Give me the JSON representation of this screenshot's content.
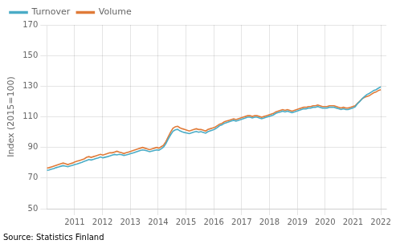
{
  "chart_data": {
    "type": "line",
    "y_label": "Index (2015=100)",
    "annotations": [
      "Source: Statistics Finland"
    ],
    "xlim": [
      2010.0,
      2022.2
    ],
    "xticks": [
      2011,
      2012,
      2013,
      2014,
      2015,
      2016,
      2017,
      2018,
      2019,
      2020,
      2021,
      2022
    ],
    "ylim": [
      50,
      170
    ],
    "yticks": [
      50,
      70,
      90,
      110,
      130,
      150,
      170
    ],
    "grid": true,
    "legend": "upper left",
    "x": [
      2010.0,
      2010.0839,
      2010.1678,
      2010.2517,
      2010.3357,
      2010.4196,
      2010.5035,
      2010.5874,
      2010.6713,
      2010.7552,
      2010.8392,
      2010.9231,
      2011.007,
      2011.0909,
      2011.1748,
      2011.2587,
      2011.3427,
      2011.4266,
      2011.5105,
      2011.5944,
      2011.6783,
      2011.7622,
      2011.8462,
      2011.9301,
      2012.014,
      2012.0979,
      2012.1818,
      2012.2657,
      2012.3497,
      2012.4336,
      2012.5175,
      2012.6014,
      2012.6853,
      2012.7692,
      2012.8531,
      2012.9371,
      2013.021,
      2013.1049,
      2013.1888,
      2013.2727,
      2013.3566,
      2013.4406,
      2013.5245,
      2013.6084,
      2013.6923,
      2013.7762,
      2013.8601,
      2013.9441,
      2014.028,
      2014.1119,
      2014.1958,
      2014.2797,
      2014.3636,
      2014.4476,
      2014.5315,
      2014.6154,
      2014.6993,
      2014.7832,
      2014.8671,
      2014.951,
      2015.035,
      2015.1189,
      2015.2028,
      2015.2867,
      2015.3706,
      2015.4545,
      2015.5385,
      2015.6224,
      2015.7063,
      2015.7902,
      2015.8741,
      2015.958,
      2016.042,
      2016.1259,
      2016.2098,
      2016.2937,
      2016.3776,
      2016.4615,
      2016.5455,
      2016.6294,
      2016.7133,
      2016.7972,
      2016.8811,
      2016.965,
      2017.049,
      2017.1329,
      2017.2168,
      2017.3007,
      2017.3846,
      2017.4685,
      2017.5524,
      2017.6364,
      2017.7203,
      2017.8042,
      2017.8881,
      2017.972,
      2018.0559,
      2018.1399,
      2018.2238,
      2018.3077,
      2018.3916,
      2018.4755,
      2018.5594,
      2018.6434,
      2018.7273,
      2018.8112,
      2018.8951,
      2018.979,
      2019.0629,
      2019.1469,
      2019.2308,
      2019.3147,
      2019.3986,
      2019.4825,
      2019.5664,
      2019.6503,
      2019.7343,
      2019.8182,
      2019.9021,
      2019.986,
      2020.0699,
      2020.1538,
      2020.2378,
      2020.3217,
      2020.4056,
      2020.4895,
      2020.5734,
      2020.6573,
      2020.7413,
      2020.8252,
      2020.9091,
      2020.993,
      2021.0769,
      2021.1608,
      2021.2448,
      2021.3287,
      2021.4126,
      2021.4965,
      2021.5804,
      2021.6643,
      2021.7483,
      2021.8322,
      2021.9161,
      2022.0
    ],
    "series": [
      {
        "name": "Turnover",
        "color": "#4bacc6",
        "values": [
          75.0,
          75.3,
          75.8,
          76.2,
          76.8,
          77.2,
          77.7,
          78.1,
          77.8,
          77.4,
          77.9,
          78.3,
          78.8,
          79.2,
          79.8,
          80.3,
          80.9,
          81.5,
          82.1,
          81.8,
          82.2,
          82.7,
          83.2,
          83.8,
          83.2,
          83.6,
          84.0,
          84.5,
          85.0,
          85.4,
          85.1,
          85.5,
          85.2,
          84.8,
          85.1,
          85.5,
          86.0,
          86.4,
          87.0,
          87.5,
          88.0,
          88.4,
          88.1,
          87.7,
          87.2,
          87.6,
          88.0,
          88.4,
          88.2,
          89.1,
          90.3,
          92.5,
          95.5,
          98.2,
          100.5,
          101.5,
          101.8,
          100.8,
          100.2,
          99.7,
          99.4,
          99.0,
          99.5,
          100.0,
          100.4,
          99.9,
          100.3,
          99.8,
          99.3,
          100.3,
          100.8,
          101.3,
          102.0,
          103.0,
          104.2,
          104.7,
          105.7,
          106.2,
          106.7,
          107.2,
          107.7,
          107.2,
          107.7,
          108.2,
          108.7,
          109.2,
          109.7,
          109.7,
          109.2,
          109.7,
          109.7,
          109.2,
          108.7,
          109.2,
          109.7,
          110.2,
          110.7,
          111.2,
          112.2,
          112.7,
          113.2,
          113.7,
          113.2,
          113.7,
          113.2,
          112.7,
          113.2,
          113.7,
          114.2,
          114.7,
          115.2,
          115.2,
          115.7,
          115.7,
          116.2,
          116.2,
          116.7,
          116.2,
          115.7,
          115.7,
          115.7,
          116.2,
          116.2,
          116.2,
          115.7,
          115.2,
          114.7,
          115.2,
          114.7,
          114.7,
          115.2,
          115.7,
          116.5,
          118.5,
          120.0,
          121.8,
          123.2,
          124.5,
          125.2,
          126.2,
          127.2,
          127.7,
          128.7,
          129.5
        ]
      },
      {
        "name": "Volume",
        "color": "#e07b39",
        "values": [
          76.5,
          76.8,
          77.3,
          77.8,
          78.3,
          78.8,
          79.3,
          79.8,
          79.3,
          78.8,
          79.3,
          79.8,
          80.5,
          81.0,
          81.5,
          82.0,
          82.5,
          83.5,
          84.0,
          83.5,
          84.0,
          84.5,
          85.0,
          85.5,
          85.0,
          85.5,
          86.0,
          86.5,
          86.5,
          87.0,
          87.5,
          87.0,
          86.5,
          86.0,
          86.5,
          87.0,
          87.5,
          88.0,
          88.5,
          89.0,
          89.5,
          90.0,
          89.5,
          89.0,
          88.5,
          89.0,
          89.5,
          90.0,
          89.5,
          90.5,
          91.5,
          93.8,
          97.0,
          100.0,
          102.5,
          103.5,
          103.8,
          102.8,
          102.2,
          101.7,
          101.2,
          100.7,
          101.2,
          101.7,
          102.2,
          101.7,
          101.7,
          101.2,
          100.7,
          101.7,
          102.2,
          102.7,
          103.2,
          104.2,
          105.2,
          105.7,
          106.7,
          107.2,
          107.7,
          108.2,
          108.7,
          108.2,
          108.7,
          109.2,
          109.7,
          110.2,
          110.7,
          110.7,
          110.2,
          110.7,
          110.7,
          110.2,
          109.7,
          110.2,
          110.7,
          111.2,
          111.7,
          112.2,
          113.2,
          113.7,
          114.2,
          114.7,
          114.2,
          114.7,
          114.2,
          113.7,
          114.2,
          114.7,
          115.2,
          115.7,
          116.2,
          116.2,
          116.7,
          116.7,
          117.2,
          117.2,
          117.7,
          117.2,
          116.7,
          116.7,
          116.7,
          117.2,
          117.2,
          117.2,
          116.7,
          116.2,
          115.7,
          116.2,
          115.7,
          115.7,
          116.2,
          116.7,
          117.2,
          118.7,
          120.2,
          121.7,
          122.7,
          123.2,
          123.7,
          124.7,
          125.7,
          126.2,
          127.2,
          127.7
        ]
      }
    ]
  }
}
